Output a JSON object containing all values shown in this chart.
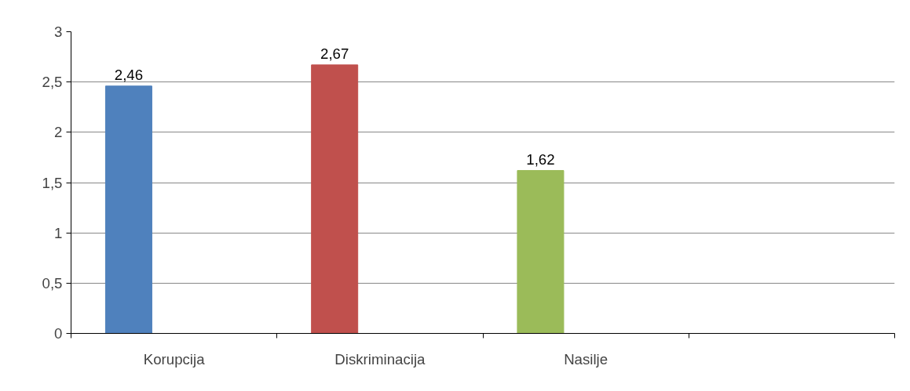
{
  "chart_data": {
    "type": "bar",
    "categories": [
      "Korupcija",
      "Diskriminacija",
      "Nasilje",
      null
    ],
    "values": [
      2.46,
      2.67,
      1.62,
      null
    ],
    "colors": [
      "#4f81bd",
      "#c0504d",
      "#9bbb59",
      "#8064a2"
    ],
    "value_labels": [
      "2,46",
      "2,67",
      "1,62",
      null
    ],
    "ylim": [
      0,
      3
    ],
    "yticks": [
      0,
      {
        "value": 0.5,
        "label": "0,5"
      },
      1,
      {
        "value": 1.5,
        "label": "1,5"
      },
      2,
      {
        "value": 2.5,
        "label": "2,5"
      },
      3
    ],
    "grid": "y"
  }
}
